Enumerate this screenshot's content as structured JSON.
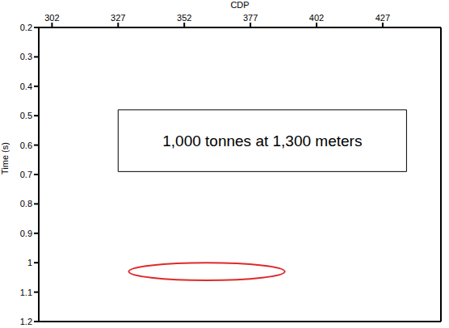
{
  "chart_data": {
    "type": "seismic",
    "x_label": "CDP",
    "y_label": "Time (s)",
    "xlim": [
      297,
      449
    ],
    "xticks": [
      302,
      327,
      352,
      377,
      402,
      427
    ],
    "ylim": [
      0.2,
      1.2
    ],
    "yticks": [
      0.2,
      0.3,
      0.4,
      0.5,
      0.6,
      0.7,
      0.8,
      0.9,
      1,
      1.1,
      1.2
    ],
    "grid": true,
    "annotations": [
      {
        "text": "1,000 tonnes at 1,300 meters",
        "x": [
          327,
          436
        ],
        "y": [
          0.48,
          0.69
        ]
      }
    ],
    "highlight": {
      "shape": "ellipse",
      "x": [
        331,
        390
      ],
      "y": [
        1.0,
        1.06
      ],
      "color": "#e0282a"
    }
  }
}
